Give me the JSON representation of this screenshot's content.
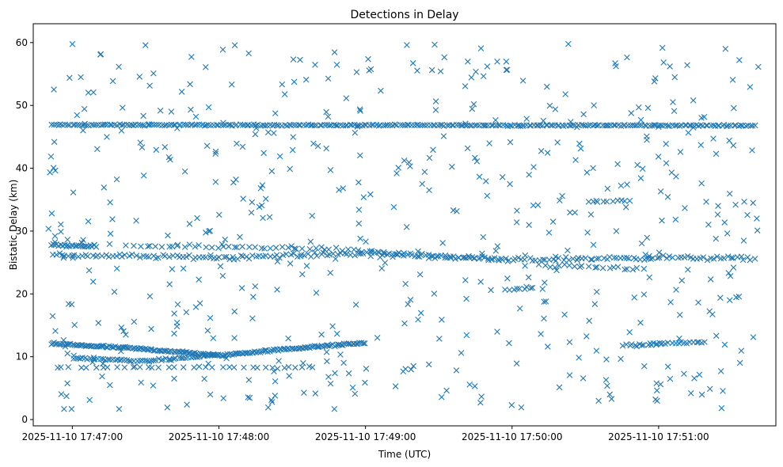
{
  "chart_data": {
    "type": "scatter",
    "title": "Detections in Delay",
    "xlabel": "Time (UTC)",
    "ylabel": "Bistatic Delay (km)",
    "marker": "x",
    "color": "#1f77b4",
    "grid": false,
    "x_ticks": [
      {
        "t": 0,
        "label": "2025-11-10 17:47:00"
      },
      {
        "t": 60,
        "label": "2025-11-10 17:48:00"
      },
      {
        "t": 120,
        "label": "2025-11-10 17:49:00"
      },
      {
        "t": 180,
        "label": "2025-11-10 17:50:00"
      },
      {
        "t": 240,
        "label": "2025-11-10 17:51:00"
      }
    ],
    "x_unit": "seconds after 2025-11-10 17:47:00",
    "xlim": [
      -16,
      288
    ],
    "y_ticks": [
      0,
      10,
      20,
      30,
      40,
      50,
      60
    ],
    "ylim": [
      -1,
      63
    ],
    "series": [
      {
        "name": "Constant return ~47 km",
        "x_range": [
          -9,
          280
        ],
        "y_points": [
          [
            -9,
            46.9
          ],
          [
            280,
            46.8
          ]
        ],
        "jitter": 0.15,
        "count": 300
      },
      {
        "name": "Track ~27 km upper",
        "x_range": [
          -9,
          10
        ],
        "y_points": [
          [
            -9,
            27.8
          ],
          [
            10,
            27.6
          ]
        ],
        "jitter": 0.25,
        "count": 25
      },
      {
        "name": "Track ~26 km main",
        "x_range": [
          -9,
          280
        ],
        "y_points": [
          [
            -9,
            26.2
          ],
          [
            60,
            25.8
          ],
          [
            120,
            26.5
          ],
          [
            180,
            25.4
          ],
          [
            240,
            25.8
          ],
          [
            280,
            25.6
          ]
        ],
        "jitter": 0.45,
        "count": 210
      },
      {
        "name": "Track ~28 km segment",
        "x_range": [
          25,
          180
        ],
        "y_points": [
          [
            25,
            27.6
          ],
          [
            100,
            27.3
          ],
          [
            180,
            25.2
          ]
        ],
        "jitter": 0.4,
        "count": 70
      },
      {
        "name": "Track ~24 km segment",
        "x_range": [
          190,
          235
        ],
        "y_points": [
          [
            190,
            24.5
          ],
          [
            235,
            24.0
          ]
        ],
        "jitter": 0.4,
        "count": 22
      },
      {
        "name": "Track ~35 km segment",
        "x_range": [
          210,
          230
        ],
        "y_points": [
          [
            210,
            34.6
          ],
          [
            230,
            34.9
          ]
        ],
        "jitter": 0.2,
        "count": 10
      },
      {
        "name": "Track ~20.8 km segment",
        "x_range": [
          176,
          190
        ],
        "y_points": [
          [
            176,
            20.6
          ],
          [
            190,
            20.9
          ]
        ],
        "jitter": 0.15,
        "count": 8
      },
      {
        "name": "Track ~12 km",
        "x_range": [
          -9,
          120
        ],
        "y_points": [
          [
            -9,
            12.1
          ],
          [
            30,
            11.2
          ],
          [
            60,
            10.2
          ],
          [
            90,
            11.3
          ],
          [
            120,
            12.2
          ]
        ],
        "jitter": 0.25,
        "count": 190
      },
      {
        "name": "Track ~10 km",
        "x_range": [
          0,
          60
        ],
        "y_points": [
          [
            0,
            9.8
          ],
          [
            30,
            9.3
          ],
          [
            60,
            10.3
          ]
        ],
        "jitter": 0.2,
        "count": 60
      },
      {
        "name": "Track ~8.3 km",
        "x_range": [
          -8,
          100
        ],
        "y_points": [
          [
            -8,
            8.3
          ],
          [
            100,
            8.3
          ]
        ],
        "jitter": 0.15,
        "count": 35
      },
      {
        "name": "Track ~12 km late",
        "x_range": [
          225,
          260
        ],
        "y_points": [
          [
            225,
            11.8
          ],
          [
            260,
            12.4
          ]
        ],
        "jitter": 0.25,
        "count": 28
      },
      {
        "name": "Noise",
        "x_range": [
          -10,
          281
        ],
        "y_range": [
          1.5,
          59.8
        ],
        "count": 560,
        "seed": 7
      }
    ]
  }
}
